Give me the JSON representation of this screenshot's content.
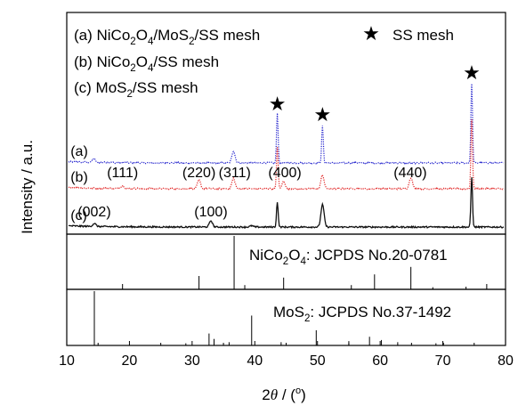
{
  "chart_data": {
    "type": "line",
    "xlabel": {
      "pre": "2",
      "theta": "θ",
      "post": " / (",
      "deg": "o",
      "close": ")"
    },
    "ylabel": "Intensity / a.u.",
    "xlim": [
      10,
      80
    ],
    "xticks": [
      10,
      20,
      30,
      40,
      50,
      60,
      70,
      80
    ],
    "grid": false,
    "legend": {
      "placement": "top-left",
      "entries": [
        {
          "parts": [
            "(a) NiCo",
            "2",
            "O",
            "4",
            "/MoS",
            "2",
            "/SS mesh"
          ]
        },
        {
          "parts": [
            "(b) NiCo",
            "2",
            "O",
            "4",
            "/SS mesh"
          ]
        },
        {
          "parts": [
            "(c) MoS",
            "2",
            "/SS mesh"
          ]
        }
      ],
      "marker_entry": {
        "symbol": "★",
        "label": "SS mesh"
      }
    },
    "series": [
      {
        "label": "(a)",
        "color": "#1f1fcc",
        "style": "dotted",
        "offset": 0.8,
        "peaks": [
          {
            "x": 14.3,
            "h": 0.15
          },
          {
            "x": 36.6,
            "h": 0.48
          },
          {
            "x": 43.6,
            "h": 2.0
          },
          {
            "x": 50.8,
            "h": 1.48
          },
          {
            "x": 74.6,
            "h": 3.2
          }
        ]
      },
      {
        "label": "(b)",
        "color": "#e02020",
        "style": "dotted",
        "offset": 0.45,
        "peaks": [
          {
            "x": 18.9,
            "h": 0.12
          },
          {
            "x": 31.1,
            "h": 0.35
          },
          {
            "x": 36.6,
            "h": 0.42
          },
          {
            "x": 43.6,
            "h": 1.7
          },
          {
            "x": 44.6,
            "h": 0.3
          },
          {
            "x": 50.8,
            "h": 0.55
          },
          {
            "x": 64.9,
            "h": 0.45
          },
          {
            "x": 74.6,
            "h": 2.8
          }
        ]
      },
      {
        "label": "(c)",
        "color": "#111111",
        "style": "solid",
        "offset": 0.05,
        "peaks": [
          {
            "x": 14.4,
            "h": 0.12
          },
          {
            "x": 33.0,
            "h": 0.25
          },
          {
            "x": 39.5,
            "h": 0.05
          },
          {
            "x": 43.6,
            "h": 1.02
          },
          {
            "x": 50.8,
            "h": 0.9
          },
          {
            "x": 74.6,
            "h": 2.0
          }
        ]
      }
    ],
    "star_markers": [
      43.6,
      50.8,
      74.6
    ],
    "annotations": [
      {
        "text": "(111)",
        "x": 18.9,
        "row": "b"
      },
      {
        "text": "(220)",
        "x": 31.1,
        "row": "b"
      },
      {
        "text": "(311)",
        "x": 36.8,
        "row": "b"
      },
      {
        "text": "(400)",
        "x": 44.8,
        "row": "b"
      },
      {
        "text": "(440)",
        "x": 64.8,
        "row": "b"
      },
      {
        "text": "(002)",
        "x": 14.4,
        "row": "c"
      },
      {
        "text": "(100)",
        "x": 33.0,
        "row": "c"
      }
    ],
    "reference_patterns": [
      {
        "label_parts": [
          "NiCo",
          "2",
          "O",
          "4",
          ": JCPDS No.20-0781"
        ],
        "lines": [
          {
            "x": 18.9,
            "h": 0.1
          },
          {
            "x": 31.1,
            "h": 0.25
          },
          {
            "x": 36.7,
            "h": 1.0
          },
          {
            "x": 38.4,
            "h": 0.08
          },
          {
            "x": 44.6,
            "h": 0.22
          },
          {
            "x": 55.4,
            "h": 0.08
          },
          {
            "x": 59.1,
            "h": 0.28
          },
          {
            "x": 64.9,
            "h": 0.42
          },
          {
            "x": 68.4,
            "h": 0.04
          },
          {
            "x": 73.7,
            "h": 0.05
          },
          {
            "x": 77.0,
            "h": 0.1
          }
        ]
      },
      {
        "label_parts": [
          "MoS",
          "2",
          ": JCPDS No.37-1492"
        ],
        "lines": [
          {
            "x": 14.4,
            "h": 1.0
          },
          {
            "x": 29.0,
            "h": 0.04
          },
          {
            "x": 32.7,
            "h": 0.22
          },
          {
            "x": 33.5,
            "h": 0.12
          },
          {
            "x": 35.9,
            "h": 0.06
          },
          {
            "x": 39.5,
            "h": 0.55
          },
          {
            "x": 44.2,
            "h": 0.06
          },
          {
            "x": 49.8,
            "h": 0.28
          },
          {
            "x": 55.0,
            "h": 0.08
          },
          {
            "x": 58.3,
            "h": 0.16
          },
          {
            "x": 60.2,
            "h": 0.1
          },
          {
            "x": 62.8,
            "h": 0.06
          },
          {
            "x": 68.9,
            "h": 0.04
          },
          {
            "x": 70.1,
            "h": 0.05
          }
        ]
      }
    ]
  }
}
